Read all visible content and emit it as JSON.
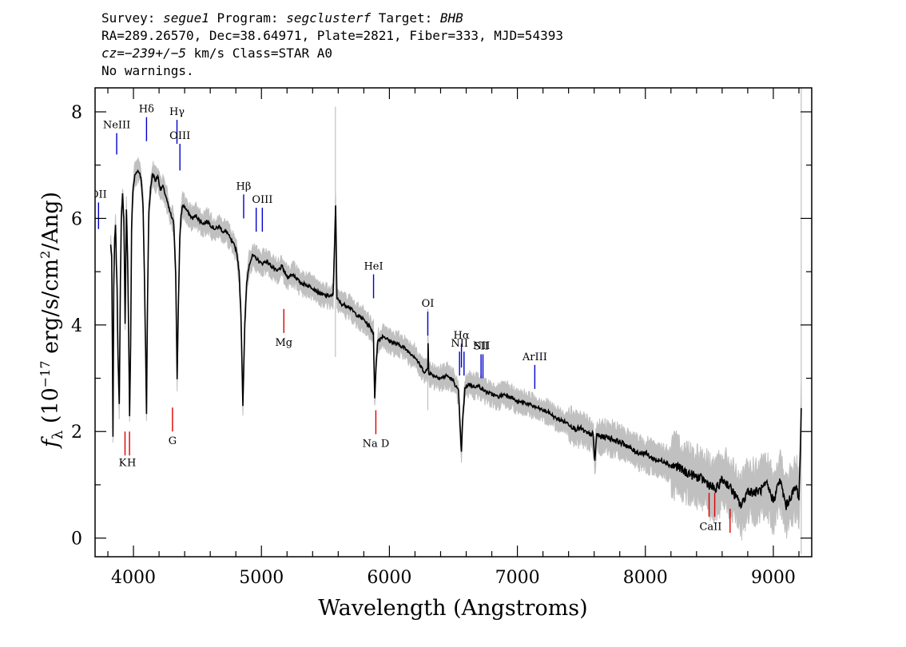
{
  "header": {
    "line1": {
      "survey_label": "Survey: ",
      "survey": "segue1",
      "program_label": " Program: ",
      "program": "segclusterf",
      "target_label": " Target: ",
      "target": "BHB"
    },
    "line2": "RA=289.26570, Dec=38.64971, Plate=2821, Fiber=333, MJD=54393",
    "line3": {
      "cz_label": "cz=",
      "cz": "−239+/−5",
      "rest": " km/s Class=STAR A0"
    },
    "line4": "No warnings."
  },
  "chart_data": {
    "type": "line",
    "xlabel": "Wavelength (Angstroms)",
    "ylabel": "fλ (10⁻¹⁷ erg/s/cm²/Ang)",
    "xlim": [
      3700,
      9300
    ],
    "ylim": [
      -0.35,
      8.45
    ],
    "x_ticks": [
      4000,
      5000,
      6000,
      7000,
      8000,
      9000
    ],
    "y_ticks": [
      0,
      2,
      4,
      6,
      8
    ],
    "grid": false,
    "colors": {
      "flux": "#000000",
      "error": "#c0c0c0",
      "emission": "#0000cc",
      "absorption": "#dd0000"
    },
    "series": [
      {
        "values": [
          [
            3822,
            5.5
          ],
          [
            3830,
            5.3
          ],
          [
            3836,
            3.3
          ],
          [
            3840,
            1.9
          ],
          [
            3846,
            4.7
          ],
          [
            3853,
            5.6
          ],
          [
            3860,
            5.9
          ],
          [
            3866,
            5.2
          ],
          [
            3872,
            4.7
          ],
          [
            3879,
            3.4
          ],
          [
            3889,
            2.5
          ],
          [
            3898,
            4.8
          ],
          [
            3905,
            6.0
          ],
          [
            3915,
            6.45
          ],
          [
            3925,
            6.0
          ],
          [
            3935,
            4.0
          ],
          [
            3945,
            6.2
          ],
          [
            3955,
            5.2
          ],
          [
            3962,
            3.9
          ],
          [
            3970,
            2.3
          ],
          [
            3978,
            3.6
          ],
          [
            3985,
            5.8
          ],
          [
            3995,
            6.5
          ],
          [
            4010,
            6.8
          ],
          [
            4030,
            6.9
          ],
          [
            4050,
            6.85
          ],
          [
            4062,
            6.7
          ],
          [
            4075,
            6.2
          ],
          [
            4085,
            5.0
          ],
          [
            4095,
            3.5
          ],
          [
            4102,
            2.35
          ],
          [
            4110,
            4.5
          ],
          [
            4120,
            6.1
          ],
          [
            4135,
            6.6
          ],
          [
            4150,
            6.85
          ],
          [
            4170,
            6.7
          ],
          [
            4190,
            6.8
          ],
          [
            4210,
            6.55
          ],
          [
            4230,
            6.6
          ],
          [
            4255,
            6.4
          ],
          [
            4275,
            6.2
          ],
          [
            4295,
            6.05
          ],
          [
            4315,
            5.9
          ],
          [
            4330,
            5.0
          ],
          [
            4341,
            3.0
          ],
          [
            4352,
            4.5
          ],
          [
            4362,
            5.6
          ],
          [
            4372,
            6.05
          ],
          [
            4385,
            6.25
          ],
          [
            4405,
            6.2
          ],
          [
            4430,
            6.1
          ],
          [
            4460,
            6.0
          ],
          [
            4490,
            6.05
          ],
          [
            4520,
            5.95
          ],
          [
            4550,
            5.9
          ],
          [
            4580,
            5.95
          ],
          [
            4610,
            5.85
          ],
          [
            4640,
            5.8
          ],
          [
            4670,
            5.85
          ],
          [
            4700,
            5.75
          ],
          [
            4730,
            5.75
          ],
          [
            4760,
            5.6
          ],
          [
            4785,
            5.5
          ],
          [
            4805,
            5.4
          ],
          [
            4825,
            5.0
          ],
          [
            4840,
            4.2
          ],
          [
            4855,
            2.5
          ],
          [
            4870,
            4.0
          ],
          [
            4885,
            4.8
          ],
          [
            4905,
            5.15
          ],
          [
            4930,
            5.3
          ],
          [
            4960,
            5.25
          ],
          [
            5000,
            5.15
          ],
          [
            5040,
            5.2
          ],
          [
            5080,
            5.1
          ],
          [
            5120,
            5.0
          ],
          [
            5160,
            5.1
          ],
          [
            5200,
            4.9
          ],
          [
            5250,
            4.95
          ],
          [
            5300,
            4.8
          ],
          [
            5350,
            4.75
          ],
          [
            5400,
            4.7
          ],
          [
            5450,
            4.6
          ],
          [
            5500,
            4.55
          ],
          [
            5560,
            4.55
          ],
          [
            5580,
            6.25
          ],
          [
            5590,
            4.5
          ],
          [
            5620,
            4.4
          ],
          [
            5680,
            4.35
          ],
          [
            5740,
            4.2
          ],
          [
            5800,
            4.1
          ],
          [
            5850,
            3.95
          ],
          [
            5875,
            3.85
          ],
          [
            5885,
            2.6
          ],
          [
            5896,
            3.3
          ],
          [
            5910,
            3.7
          ],
          [
            5950,
            3.8
          ],
          [
            6000,
            3.7
          ],
          [
            6050,
            3.65
          ],
          [
            6100,
            3.6
          ],
          [
            6150,
            3.5
          ],
          [
            6200,
            3.4
          ],
          [
            6250,
            3.2
          ],
          [
            6280,
            3.1
          ],
          [
            6300,
            3.2
          ],
          [
            6302,
            3.65
          ],
          [
            6308,
            3.1
          ],
          [
            6350,
            3.05
          ],
          [
            6400,
            3.0
          ],
          [
            6450,
            3.05
          ],
          [
            6500,
            2.95
          ],
          [
            6540,
            2.75
          ],
          [
            6555,
            1.95
          ],
          [
            6563,
            1.6
          ],
          [
            6572,
            2.2
          ],
          [
            6590,
            2.8
          ],
          [
            6620,
            2.9
          ],
          [
            6650,
            2.85
          ],
          [
            6700,
            2.85
          ],
          [
            6750,
            2.75
          ],
          [
            6800,
            2.7
          ],
          [
            6850,
            2.65
          ],
          [
            6900,
            2.7
          ],
          [
            6950,
            2.65
          ],
          [
            7000,
            2.55
          ],
          [
            7050,
            2.55
          ],
          [
            7100,
            2.5
          ],
          [
            7150,
            2.45
          ],
          [
            7200,
            2.4
          ],
          [
            7250,
            2.35
          ],
          [
            7300,
            2.25
          ],
          [
            7350,
            2.2
          ],
          [
            7400,
            2.15
          ],
          [
            7450,
            2.05
          ],
          [
            7500,
            2.05
          ],
          [
            7550,
            1.95
          ],
          [
            7590,
            1.95
          ],
          [
            7605,
            1.45
          ],
          [
            7620,
            1.95
          ],
          [
            7650,
            1.9
          ],
          [
            7700,
            1.9
          ],
          [
            7750,
            1.85
          ],
          [
            7800,
            1.8
          ],
          [
            7850,
            1.75
          ],
          [
            7900,
            1.65
          ],
          [
            7950,
            1.6
          ],
          [
            8000,
            1.6
          ],
          [
            8050,
            1.5
          ],
          [
            8100,
            1.45
          ],
          [
            8150,
            1.45
          ],
          [
            8200,
            1.35
          ],
          [
            8250,
            1.35
          ],
          [
            8300,
            1.25
          ],
          [
            8350,
            1.2
          ],
          [
            8400,
            1.15
          ],
          [
            8450,
            1.1
          ],
          [
            8500,
            1.0
          ],
          [
            8550,
            0.9
          ],
          [
            8600,
            1.1
          ],
          [
            8650,
            1.0
          ],
          [
            8700,
            0.8
          ],
          [
            8750,
            0.6
          ],
          [
            8800,
            0.9
          ],
          [
            8850,
            0.85
          ],
          [
            8900,
            0.9
          ],
          [
            8950,
            1.0
          ],
          [
            9000,
            0.7
          ],
          [
            9050,
            1.1
          ],
          [
            9100,
            0.6
          ],
          [
            9150,
            0.85
          ],
          [
            9180,
            0.95
          ],
          [
            9200,
            0.75
          ],
          [
            9210,
            1.5
          ],
          [
            9218,
            2.4
          ]
        ]
      }
    ],
    "emission_lines": [
      {
        "wavelength": 3727,
        "label": "OII",
        "y_top": 6.3,
        "y_bottom": 5.8
      },
      {
        "wavelength": 3869,
        "label": "NeIII",
        "y_top": 7.6,
        "y_bottom": 7.2
      },
      {
        "wavelength": 4102,
        "label": "Hδ",
        "y_top": 7.9,
        "y_bottom": 7.45
      },
      {
        "wavelength": 4340,
        "label": "Hγ",
        "y_top": 7.85,
        "y_bottom": 7.4
      },
      {
        "wavelength": 4363,
        "label": "OIII",
        "y_top": 7.4,
        "y_bottom": 6.9
      },
      {
        "wavelength": 4861,
        "label": "Hβ",
        "y_top": 6.45,
        "y_bottom": 6.0
      },
      {
        "wavelength": 4959,
        "label": "",
        "y_top": 6.2,
        "y_bottom": 5.75
      },
      {
        "wavelength": 5007,
        "label": "OIII",
        "y_top": 6.2,
        "y_bottom": 5.75
      },
      {
        "wavelength": 5876,
        "label": "HeI",
        "y_top": 4.95,
        "y_bottom": 4.5
      },
      {
        "wavelength": 6300,
        "label": "OI",
        "y_top": 4.25,
        "y_bottom": 3.8
      },
      {
        "wavelength": 6548,
        "label": "NII",
        "y_top": 3.5,
        "y_bottom": 3.05
      },
      {
        "wavelength": 6563,
        "label": "Hα",
        "y_top": 3.65,
        "y_bottom": 3.2
      },
      {
        "wavelength": 6583,
        "label": "",
        "y_top": 3.5,
        "y_bottom": 3.05
      },
      {
        "wavelength": 6716,
        "label": "SII",
        "y_top": 3.45,
        "y_bottom": 3.0
      },
      {
        "wavelength": 6731,
        "label": "",
        "y_top": 3.45,
        "y_bottom": 3.0
      },
      {
        "wavelength": 7136,
        "label": "ArIII",
        "y_top": 3.25,
        "y_bottom": 2.8
      }
    ],
    "absorption_lines": [
      {
        "wavelength": 3934,
        "label": "",
        "y_top": 2.0,
        "y_bottom": 1.55
      },
      {
        "wavelength": 3969,
        "label": "",
        "y_top": 2.0,
        "y_bottom": 1.55
      },
      {
        "wavelength": 4305,
        "label": "G",
        "y_top": 2.45,
        "y_bottom": 2.0
      },
      {
        "wavelength": 5175,
        "label": "Mg",
        "y_top": 4.3,
        "y_bottom": 3.85
      },
      {
        "wavelength": 5894,
        "label": "Na D",
        "y_top": 2.4,
        "y_bottom": 1.95
      },
      {
        "wavelength": 8498,
        "label": "",
        "y_top": 0.85,
        "y_bottom": 0.4
      },
      {
        "wavelength": 8542,
        "label": "",
        "y_top": 0.85,
        "y_bottom": 0.4
      },
      {
        "wavelength": 8662,
        "label": "",
        "y_top": 0.55,
        "y_bottom": 0.1
      }
    ],
    "line_label_extras": [
      {
        "text": "K",
        "wavelength": 3915,
        "y": 1.35,
        "kind": "absorption"
      },
      {
        "text": "H",
        "wavelength": 3985,
        "y": 1.35,
        "kind": "absorption"
      },
      {
        "text": "NII",
        "wavelength": 6720,
        "y": 3.55,
        "kind": "emission"
      },
      {
        "text": "CaII",
        "wavelength": 8510,
        "y": 0.15,
        "kind": "absorption"
      }
    ]
  }
}
